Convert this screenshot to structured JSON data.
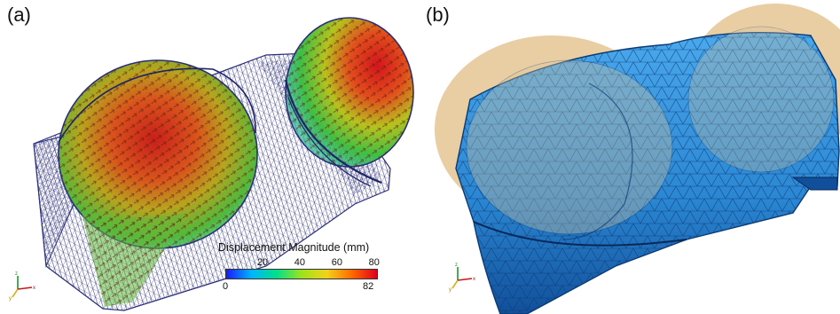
{
  "panels": [
    {
      "label": "(a)"
    },
    {
      "label": "(b)"
    }
  ],
  "colorbar": {
    "title": "Displacement Magnitude (mm)",
    "ticks": [
      "20",
      "40",
      "60",
      "80"
    ],
    "tick_values": [
      20,
      40,
      60,
      80
    ],
    "min_label": "0",
    "max_label": "82",
    "range": [
      0,
      82
    ],
    "colors": [
      "#1a1aff",
      "#00b4ff",
      "#00e08a",
      "#9de21b",
      "#f2d21a",
      "#ff6a00",
      "#e0001c"
    ]
  },
  "colors": {
    "mesh_wire": "#2b2f7a",
    "shell_fill": "#2f8fd8",
    "shell_edge": "#0c3a73",
    "transparent_dome": "#e2bd86"
  }
}
